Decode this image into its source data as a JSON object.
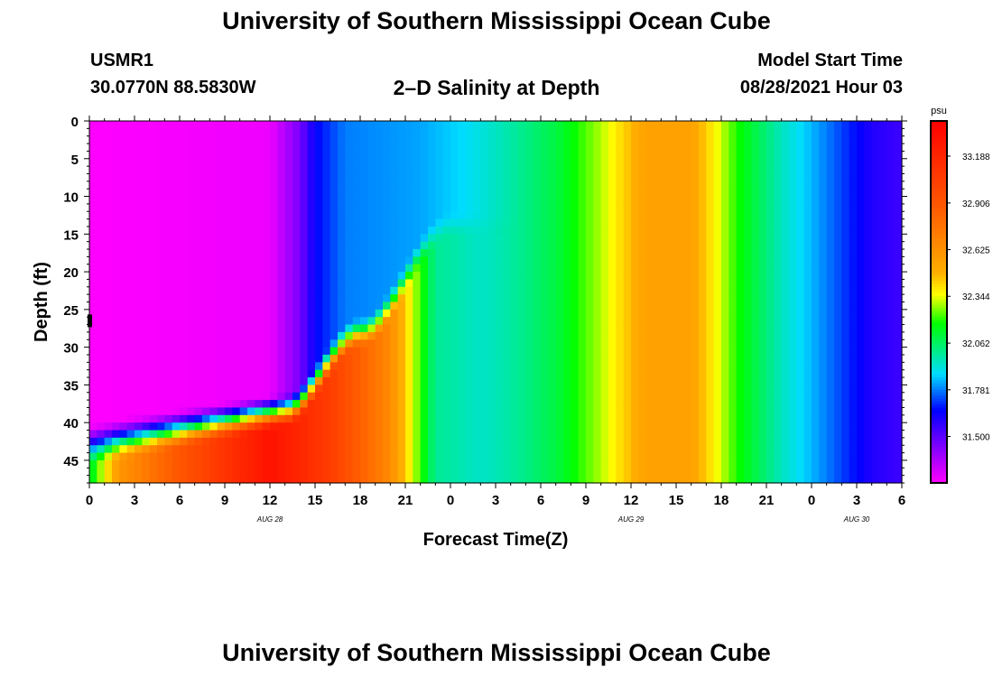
{
  "header": {
    "title": "University of Southern Mississippi Ocean Cube",
    "footer_title": "University of Southern Mississippi Ocean Cube",
    "station_id": "USMR1",
    "station_coords": "30.0770N  88.5830W",
    "plot_title": "2–D Salinity at Depth",
    "model_start_label": "Model Start Time",
    "model_start_value": "08/28/2021 Hour 03"
  },
  "chart_data": {
    "type": "heatmap",
    "title": "2–D Salinity at Depth",
    "xlabel": "Forecast Time(Z)",
    "ylabel": "Depth (ft)",
    "x_ticks": [
      "0",
      "3",
      "6",
      "9",
      "12",
      "15",
      "18",
      "21",
      "0",
      "3",
      "6",
      "9",
      "12",
      "15",
      "18",
      "21",
      "0",
      "3",
      "6"
    ],
    "date_labels": [
      {
        "text": "AUG  28",
        "tick_index": 4
      },
      {
        "text": "AUG  29",
        "tick_index": 12
      },
      {
        "text": "AUG  30",
        "tick_index": 17
      }
    ],
    "x_range_hours": [
      0,
      54
    ],
    "y_ticks": [
      "0",
      "5",
      "10",
      "15",
      "20",
      "25",
      "30",
      "35",
      "40",
      "45"
    ],
    "y_range_ft": [
      0,
      48
    ],
    "colorbar": {
      "unit": "psu",
      "range": [
        31.22,
        33.4
      ],
      "tick_labels": [
        "33.188",
        "32.906",
        "32.625",
        "32.344",
        "32.062",
        "31.781",
        "31.500"
      ],
      "tick_values": [
        33.188,
        32.906,
        32.625,
        32.344,
        32.062,
        31.781,
        31.5
      ]
    },
    "surface_salinity_by_hour": [
      {
        "hour": 0,
        "psu": 31.22
      },
      {
        "hour": 12,
        "psu": 31.25
      },
      {
        "hour": 14,
        "psu": 31.45
      },
      {
        "hour": 15,
        "psu": 31.65
      },
      {
        "hour": 17,
        "psu": 31.78
      },
      {
        "hour": 22,
        "psu": 31.82
      },
      {
        "hour": 25,
        "psu": 31.88
      },
      {
        "hour": 28,
        "psu": 31.98
      },
      {
        "hour": 31,
        "psu": 32.1
      },
      {
        "hour": 34,
        "psu": 32.3
      },
      {
        "hour": 37,
        "psu": 32.55
      },
      {
        "hour": 40,
        "psu": 32.55
      },
      {
        "hour": 43,
        "psu": 32.2
      },
      {
        "hour": 46,
        "psu": 31.95
      },
      {
        "hour": 49,
        "psu": 31.78
      },
      {
        "hour": 52,
        "psu": 31.6
      },
      {
        "hour": 54,
        "psu": 31.55
      }
    ],
    "bottom_salinity_by_hour": [
      {
        "hour": 0,
        "psu": 32.1
      },
      {
        "hour": 2,
        "psu": 32.6
      },
      {
        "hour": 6,
        "psu": 32.9
      },
      {
        "hour": 12,
        "psu": 33.3
      },
      {
        "hour": 16,
        "psu": 33.05
      },
      {
        "hour": 20,
        "psu": 32.65
      },
      {
        "hour": 23,
        "psu": 32.0
      },
      {
        "hour": 26,
        "psu": 31.95
      },
      {
        "hour": 30,
        "psu": 32.05
      }
    ],
    "marker_depth_ft": 26.5
  }
}
